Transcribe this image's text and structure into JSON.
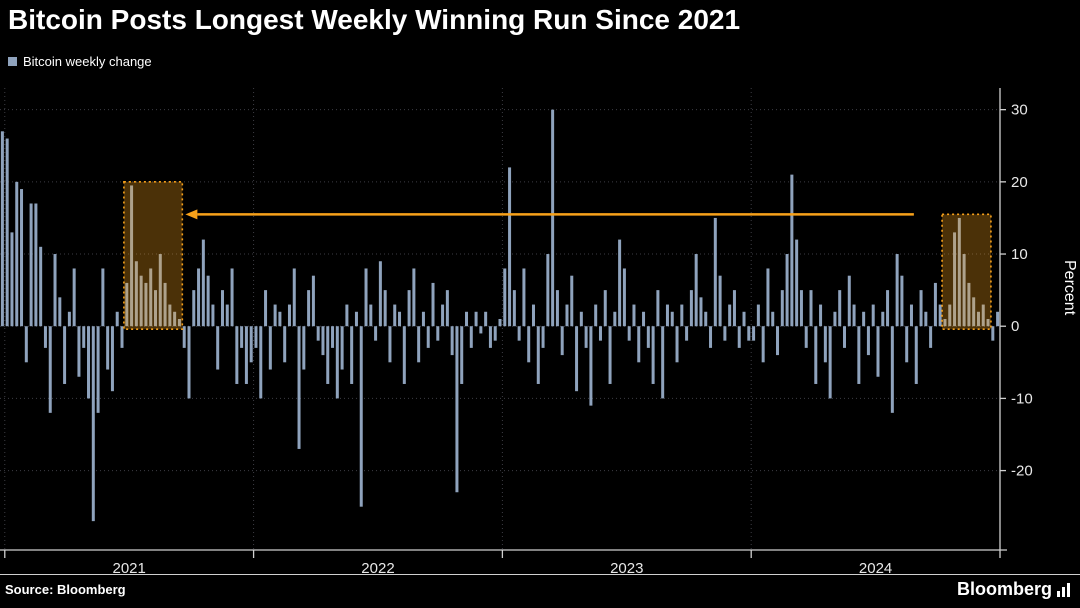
{
  "title": "Bitcoin Posts Longest Weekly Winning Run Since 2021",
  "legend": {
    "label": "Bitcoin weekly change",
    "swatch_color": "#8fa3bd"
  },
  "axis": {
    "y_title": "Percent"
  },
  "footer": {
    "source": "Source: Bloomberg",
    "brand": "Bloomberg"
  },
  "colors": {
    "background": "#000000",
    "bar": "#8fa3bd",
    "grid": "#3d3d44",
    "axis_line": "#d0d0d0",
    "tick_label": "#e8e8e8",
    "highlight": "#f7a11a",
    "highlight_fill": "rgba(247,161,26,0.30)",
    "title_text": "#ffffff"
  },
  "chart_data": {
    "type": "bar",
    "title": "Bitcoin Posts Longest Weekly Winning Run Since 2021",
    "ylabel": "Percent",
    "frequency": "weekly",
    "x_start": "late 2020",
    "legend": [
      "Bitcoin weekly change"
    ],
    "yticks": [
      30,
      20,
      10,
      0,
      -10,
      -20
    ],
    "ylim": [
      -31,
      33
    ],
    "grid": "dotted horizontal and year-boundary vertical",
    "year_labels": [
      "2021",
      "2022",
      "2023",
      "2024"
    ],
    "year_start_indices": [
      1,
      53,
      105,
      157
    ],
    "end_index": 209,
    "series": [
      {
        "name": "Bitcoin weekly change",
        "values": [
          27,
          26,
          13,
          20,
          19,
          -5,
          17,
          17,
          11,
          -3,
          -12,
          10,
          4,
          -8,
          2,
          8,
          -7,
          -3,
          -10,
          -27,
          -12,
          8,
          -6,
          -9,
          2,
          -3,
          6,
          19.5,
          9,
          7,
          6,
          8,
          5,
          10,
          6,
          3,
          2,
          1,
          -3,
          -10,
          5,
          8,
          12,
          7,
          3,
          -6,
          5,
          3,
          8,
          -8,
          -3,
          -8,
          -5,
          -3,
          -10,
          5,
          -6,
          3,
          2,
          -5,
          3,
          8,
          -17,
          -6,
          5,
          7,
          -2,
          -4,
          -8,
          -3,
          -10,
          -6,
          3,
          -8,
          2,
          -25,
          8,
          3,
          -2,
          9,
          5,
          -5,
          3,
          2,
          -8,
          5,
          8,
          -5,
          2,
          -3,
          6,
          -2,
          3,
          5,
          -4,
          -23,
          -8,
          2,
          -3,
          2,
          -1,
          2,
          -3,
          -2,
          1,
          8,
          22,
          5,
          -2,
          8,
          -5,
          3,
          -8,
          -3,
          10,
          30,
          5,
          -4,
          3,
          7,
          -9,
          2,
          -3,
          -11,
          3,
          -2,
          5,
          -8,
          2,
          12,
          8,
          -2,
          3,
          -5,
          2,
          -3,
          -8,
          5,
          -10,
          3,
          2,
          -5,
          3,
          -2,
          5,
          10,
          4,
          2,
          -3,
          15,
          7,
          -2,
          3,
          5,
          -3,
          2,
          -2,
          -2,
          3,
          -5,
          8,
          2,
          -4,
          5,
          10,
          21,
          12,
          5,
          -3,
          5,
          -8,
          3,
          -5,
          -10,
          2,
          5,
          -3,
          7,
          3,
          -8,
          2,
          -4,
          3,
          -7,
          2,
          5,
          -12,
          10,
          7,
          -5,
          3,
          -8,
          5,
          2,
          -3,
          6,
          3,
          1,
          3,
          13,
          15,
          10,
          6,
          4,
          2,
          3,
          1,
          -2,
          2
        ]
      }
    ],
    "annotations": {
      "highlight_boxes": [
        {
          "from_index": 26,
          "to_index": 37,
          "y_top": 20,
          "y_bottom": 0,
          "meaning": "2021 winning streak"
        },
        {
          "from_index": 197,
          "to_index": 206,
          "y_top": 15.5,
          "y_bottom": 0,
          "meaning": "2024 winning streak"
        }
      ],
      "arrow": {
        "y": 15.5,
        "from_index": 191,
        "to_index": 40,
        "direction": "left"
      }
    }
  }
}
